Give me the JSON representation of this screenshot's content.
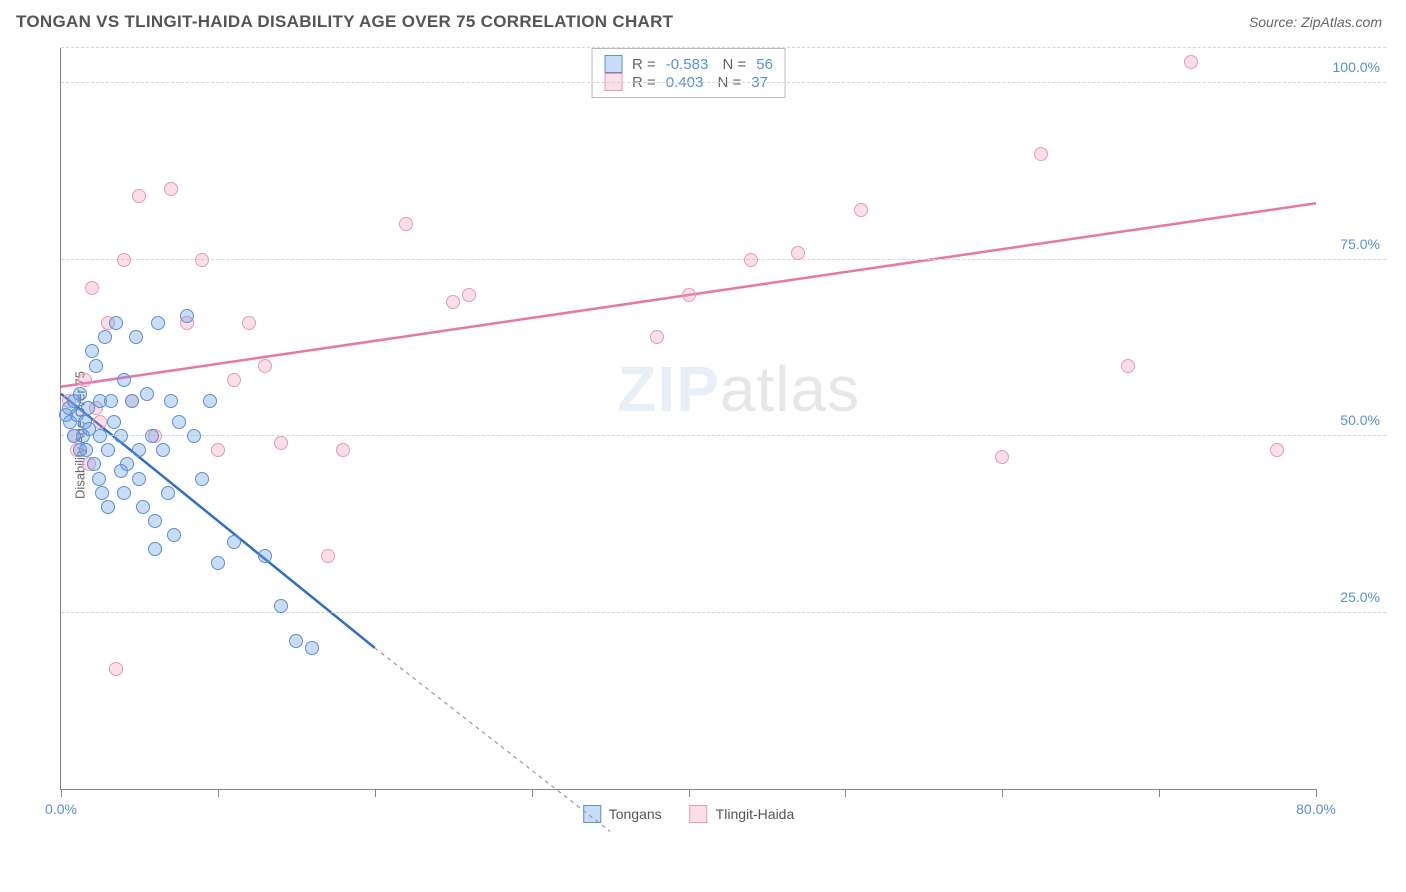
{
  "header": {
    "title": "TONGAN VS TLINGIT-HAIDA DISABILITY AGE OVER 75 CORRELATION CHART",
    "source": "Source: ZipAtlas.com"
  },
  "chart": {
    "type": "scatter",
    "ylabel": "Disability Age Over 75",
    "xlim": [
      0,
      80
    ],
    "ylim": [
      0,
      105
    ],
    "x_ticks": [
      0,
      10,
      20,
      30,
      40,
      50,
      60,
      70,
      80
    ],
    "x_tick_labels": {
      "0": "0.0%",
      "80": "80.0%"
    },
    "y_gridlines": [
      25,
      50,
      75,
      100
    ],
    "y_tick_labels": {
      "25": "25.0%",
      "50": "50.0%",
      "75": "75.0%",
      "100": "100.0%"
    },
    "grid_color": "#d5d5d5",
    "axis_color": "#888888",
    "tick_label_color": "#5b8fd6",
    "watermark": "ZIPatlas",
    "series": {
      "tongans": {
        "label": "Tongans",
        "color_fill": "rgba(100,160,230,0.35)",
        "color_stroke": "#5b8fd6",
        "trend_color": "#2f6fc4",
        "trend": {
          "x1": 0,
          "y1": 56,
          "x2": 20,
          "y2": 20,
          "dash_to_x": 35,
          "dash_to_y": -6
        },
        "R": "-0.583",
        "N": "56",
        "points": [
          [
            0.3,
            53
          ],
          [
            0.5,
            54
          ],
          [
            0.6,
            52
          ],
          [
            0.8,
            55
          ],
          [
            1.0,
            53
          ],
          [
            1.2,
            56
          ],
          [
            1.4,
            50
          ],
          [
            1.5,
            52
          ],
          [
            1.6,
            48
          ],
          [
            1.7,
            54
          ],
          [
            1.8,
            51
          ],
          [
            2.0,
            62
          ],
          [
            2.1,
            46
          ],
          [
            2.2,
            60
          ],
          [
            2.4,
            44
          ],
          [
            2.5,
            55
          ],
          [
            2.6,
            42
          ],
          [
            2.8,
            64
          ],
          [
            3.0,
            48
          ],
          [
            3.2,
            55
          ],
          [
            3.4,
            52
          ],
          [
            3.5,
            66
          ],
          [
            3.8,
            50
          ],
          [
            4.0,
            58
          ],
          [
            4.2,
            46
          ],
          [
            4.5,
            55
          ],
          [
            4.8,
            64
          ],
          [
            5.0,
            44
          ],
          [
            5.2,
            40
          ],
          [
            5.5,
            56
          ],
          [
            5.8,
            50
          ],
          [
            6.0,
            38
          ],
          [
            6.2,
            66
          ],
          [
            6.5,
            48
          ],
          [
            6.8,
            42
          ],
          [
            7.0,
            55
          ],
          [
            7.2,
            36
          ],
          [
            7.5,
            52
          ],
          [
            8.0,
            67
          ],
          [
            8.5,
            50
          ],
          [
            9.0,
            44
          ],
          [
            9.5,
            55
          ],
          [
            10.0,
            32
          ],
          [
            3.0,
            40
          ],
          [
            4.0,
            42
          ],
          [
            5.0,
            48
          ],
          [
            6.0,
            34
          ],
          [
            11.0,
            35
          ],
          [
            13.0,
            33
          ],
          [
            14.0,
            26
          ],
          [
            15.0,
            21
          ],
          [
            16.0,
            20
          ],
          [
            2.5,
            50
          ],
          [
            0.8,
            50
          ],
          [
            1.2,
            48
          ],
          [
            3.8,
            45
          ]
        ]
      },
      "tlingit": {
        "label": "Tlingit-Haida",
        "color_fill": "rgba(240,150,180,0.30)",
        "color_stroke": "#e89ab5",
        "trend_color": "#e778a2",
        "trend": {
          "x1": 0,
          "y1": 57,
          "x2": 80,
          "y2": 83
        },
        "R": "0.403",
        "N": "37",
        "points": [
          [
            0.5,
            55
          ],
          [
            1.0,
            48
          ],
          [
            1.5,
            58
          ],
          [
            2.0,
            71
          ],
          [
            2.5,
            52
          ],
          [
            3.0,
            66
          ],
          [
            4.0,
            75
          ],
          [
            5.0,
            84
          ],
          [
            6.0,
            50
          ],
          [
            7.0,
            85
          ],
          [
            8.0,
            66
          ],
          [
            9.0,
            75
          ],
          [
            10.0,
            48
          ],
          [
            11.0,
            58
          ],
          [
            12.0,
            66
          ],
          [
            13.0,
            60
          ],
          [
            14.0,
            49
          ],
          [
            17.0,
            33
          ],
          [
            18.0,
            48
          ],
          [
            22.0,
            80
          ],
          [
            25.0,
            69
          ],
          [
            26.0,
            70
          ],
          [
            38.0,
            64
          ],
          [
            40.0,
            70
          ],
          [
            44.0,
            75
          ],
          [
            47.0,
            76
          ],
          [
            51.0,
            82
          ],
          [
            60.0,
            47
          ],
          [
            62.5,
            90
          ],
          [
            68.0,
            60
          ],
          [
            72.0,
            103
          ],
          [
            77.5,
            48
          ],
          [
            3.5,
            17
          ],
          [
            1.8,
            46
          ],
          [
            0.8,
            50
          ],
          [
            2.2,
            54
          ],
          [
            4.5,
            55
          ]
        ]
      }
    },
    "bottom_legend": [
      {
        "key": "tongans",
        "label": "Tongans"
      },
      {
        "key": "tlingit",
        "label": "Tlingit-Haida"
      }
    ]
  }
}
